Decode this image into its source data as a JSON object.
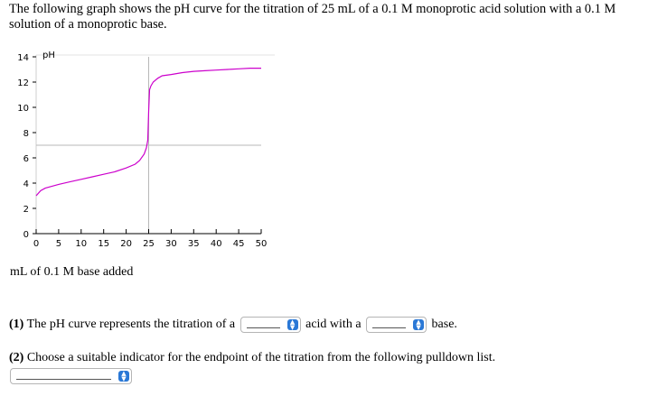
{
  "intro": "The following graph shows the pH curve for the titration of 25 mL of a 0.1 M monoprotic acid solution with a 0.1 M solution of a monoprotic base.",
  "chart_data": {
    "type": "line",
    "ylabel": "pH",
    "xlabel": "mL of 0.1 M base added",
    "xlim": [
      0,
      50
    ],
    "ylim": [
      0,
      14
    ],
    "xticks": [
      0,
      5,
      10,
      15,
      20,
      25,
      30,
      35,
      40,
      45,
      50
    ],
    "yticks": [
      0,
      2,
      4,
      6,
      8,
      10,
      12,
      14
    ],
    "color": "#cc00cc",
    "reference_lines": {
      "x": 25,
      "y": 7
    },
    "series": [
      {
        "x": [
          0,
          1,
          2,
          3,
          5,
          7.5,
          10,
          12.5,
          15,
          17.5,
          20,
          22,
          23,
          24,
          24.5,
          24.8,
          25,
          25.2,
          25.5,
          26,
          27,
          28,
          30,
          32.5,
          35,
          37.5,
          40,
          42.5,
          45,
          47.5,
          50
        ],
        "y": [
          3.0,
          3.4,
          3.6,
          3.7,
          3.9,
          4.1,
          4.3,
          4.5,
          4.7,
          4.9,
          5.2,
          5.5,
          5.8,
          6.3,
          6.8,
          7.4,
          9.7,
          11.4,
          11.7,
          12.0,
          12.3,
          12.5,
          12.6,
          12.75,
          12.85,
          12.9,
          12.95,
          13.0,
          13.05,
          13.1,
          13.1
        ]
      }
    ]
  },
  "questions": {
    "q1_number": "(1)",
    "q1_text": "The pH curve represents the titration of a",
    "q1_mid": "acid with a",
    "q1_end": "base.",
    "q2_number": "(2)",
    "q2_text": "Choose a suitable indicator for the endpoint of the titration from the following pulldown list."
  }
}
